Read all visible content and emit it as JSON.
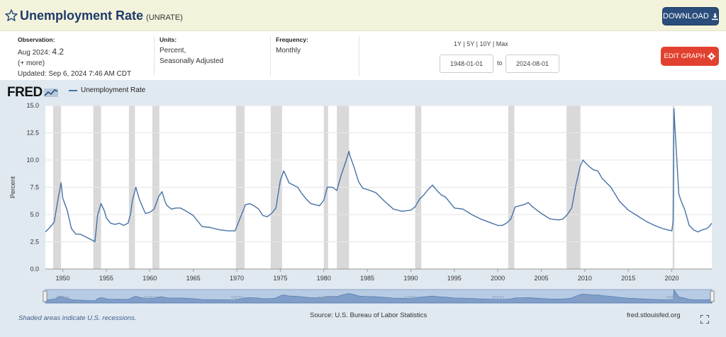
{
  "header": {
    "title": "Unemployment Rate",
    "series_id": "(UNRATE)",
    "download_label": "DOWNLOAD"
  },
  "meta": {
    "observation_label": "Observation:",
    "observation_date": "Aug 2024:",
    "observation_value": "4.2",
    "more_label": "(+ more)",
    "updated": "Updated: Sep 6, 2024 7:46 AM CDT",
    "units_label": "Units:",
    "units_line1": "Percent,",
    "units_line2": "Seasonally Adjusted",
    "frequency_label": "Frequency:",
    "frequency_value": "Monthly",
    "ranges": [
      "1Y",
      "5Y",
      "10Y",
      "Max"
    ],
    "range_sep": "|",
    "date_from": "1948-01-01",
    "to_label": "to",
    "date_to": "2024-08-01",
    "edit_label": "EDIT GRAPH"
  },
  "logo_text": "FRED",
  "footer": {
    "recession_note": "Shaded areas indicate U.S. recessions.",
    "source": "Source: U.S. Bureau of Labor Statistics",
    "site": "fred.stlouisfed.org"
  },
  "colors": {
    "line": "#4572a7",
    "recession": "#d9d9d9",
    "panel": "#e1e9f0",
    "title": "#1f3a6a"
  },
  "chart_data": {
    "type": "line",
    "title": "Unemployment Rate",
    "ylabel": "Percent",
    "xlabel": "",
    "xlim": [
      1948.0,
      2024.6
    ],
    "ylim": [
      0,
      15
    ],
    "yticks": [
      0.0,
      2.5,
      5.0,
      7.5,
      10.0,
      12.5,
      15.0
    ],
    "ytick_labels": [
      "0.0",
      "2.5",
      "5.0",
      "7.5",
      "10.0",
      "12.5",
      "15.0"
    ],
    "xticks": [
      1950,
      1955,
      1960,
      1965,
      1970,
      1975,
      1980,
      1985,
      1990,
      1995,
      2000,
      2005,
      2010,
      2015,
      2020
    ],
    "xtick_labels": [
      "1950",
      "1955",
      "1960",
      "1965",
      "1970",
      "1975",
      "1980",
      "1985",
      "1990",
      "1995",
      "2000",
      "2005",
      "2010",
      "2015",
      "2020"
    ],
    "series": [
      {
        "name": "Unemployment Rate",
        "x": [
          1948.0,
          1948.5,
          1949.0,
          1949.5,
          1949.8,
          1950.0,
          1950.5,
          1951.0,
          1951.5,
          1952.0,
          1952.5,
          1953.0,
          1953.5,
          1953.7,
          1954.0,
          1954.4,
          1954.8,
          1955.0,
          1955.5,
          1956.0,
          1956.5,
          1957.0,
          1957.5,
          1957.8,
          1958.0,
          1958.4,
          1958.8,
          1959.0,
          1959.5,
          1960.0,
          1960.5,
          1961.0,
          1961.4,
          1961.8,
          1962.0,
          1962.5,
          1963.0,
          1963.5,
          1964.0,
          1965.0,
          1966.0,
          1967.0,
          1968.0,
          1969.0,
          1969.8,
          1970.0,
          1970.5,
          1971.0,
          1971.5,
          1972.0,
          1972.5,
          1973.0,
          1973.5,
          1974.0,
          1974.5,
          1975.0,
          1975.4,
          1975.8,
          1976.0,
          1976.5,
          1977.0,
          1977.5,
          1978.0,
          1978.5,
          1979.0,
          1979.5,
          1980.0,
          1980.4,
          1980.8,
          1981.0,
          1981.5,
          1982.0,
          1982.5,
          1982.9,
          1983.0,
          1983.5,
          1984.0,
          1984.5,
          1985.0,
          1986.0,
          1987.0,
          1988.0,
          1989.0,
          1990.0,
          1990.5,
          1991.0,
          1991.5,
          1992.0,
          1992.5,
          1993.0,
          1993.5,
          1994.0,
          1995.0,
          1996.0,
          1997.0,
          1998.0,
          1999.0,
          2000.0,
          2000.5,
          2001.0,
          2001.5,
          2002.0,
          2002.5,
          2003.0,
          2003.5,
          2004.0,
          2005.0,
          2006.0,
          2007.0,
          2007.5,
          2008.0,
          2008.5,
          2009.0,
          2009.5,
          2009.8,
          2010.0,
          2010.5,
          2011.0,
          2011.5,
          2012.0,
          2013.0,
          2014.0,
          2015.0,
          2016.0,
          2017.0,
          2018.0,
          2019.0,
          2019.5,
          2020.0,
          2020.15,
          2020.25,
          2020.35,
          2020.5,
          2020.8,
          2021.0,
          2021.5,
          2022.0,
          2022.5,
          2023.0,
          2023.5,
          2024.0,
          2024.3,
          2024.6
        ],
        "values": [
          3.4,
          3.8,
          4.3,
          6.6,
          7.9,
          6.5,
          5.4,
          3.7,
          3.2,
          3.2,
          3.0,
          2.8,
          2.6,
          2.5,
          4.9,
          6.0,
          5.3,
          4.7,
          4.2,
          4.1,
          4.2,
          4.0,
          4.2,
          5.1,
          6.3,
          7.5,
          6.4,
          6.0,
          5.1,
          5.2,
          5.5,
          6.6,
          7.1,
          6.1,
          5.8,
          5.5,
          5.6,
          5.6,
          5.4,
          4.9,
          3.9,
          3.8,
          3.6,
          3.5,
          3.5,
          3.9,
          4.9,
          5.9,
          6.0,
          5.8,
          5.5,
          4.9,
          4.8,
          5.1,
          5.6,
          8.1,
          9.0,
          8.3,
          7.9,
          7.7,
          7.5,
          6.9,
          6.4,
          6.0,
          5.9,
          5.8,
          6.3,
          7.5,
          7.5,
          7.5,
          7.2,
          8.6,
          9.8,
          10.8,
          10.4,
          9.3,
          8.0,
          7.4,
          7.3,
          7.0,
          6.2,
          5.5,
          5.3,
          5.4,
          5.7,
          6.4,
          6.8,
          7.3,
          7.7,
          7.2,
          6.8,
          6.6,
          5.6,
          5.5,
          5.0,
          4.6,
          4.3,
          4.0,
          4.0,
          4.2,
          4.6,
          5.7,
          5.8,
          5.9,
          6.1,
          5.7,
          5.1,
          4.6,
          4.5,
          4.6,
          5.0,
          5.6,
          7.8,
          9.5,
          10.0,
          9.8,
          9.4,
          9.1,
          9.0,
          8.3,
          7.5,
          6.2,
          5.4,
          4.9,
          4.4,
          4.0,
          3.7,
          3.6,
          3.5,
          4.4,
          14.7,
          13.2,
          11.1,
          6.9,
          6.4,
          5.4,
          4.0,
          3.6,
          3.4,
          3.6,
          3.7,
          3.9,
          4.2
        ]
      }
    ],
    "recessions": [
      [
        1948.9,
        1949.8
      ],
      [
        1953.5,
        1954.4
      ],
      [
        1957.6,
        1958.3
      ],
      [
        1960.3,
        1961.1
      ],
      [
        1969.9,
        1970.9
      ],
      [
        1973.9,
        1975.2
      ],
      [
        1980.0,
        1980.5
      ],
      [
        1981.5,
        1982.9
      ],
      [
        1990.5,
        1991.2
      ],
      [
        2001.2,
        2001.9
      ],
      [
        2007.9,
        2009.5
      ],
      [
        2020.1,
        2020.3
      ]
    ]
  }
}
